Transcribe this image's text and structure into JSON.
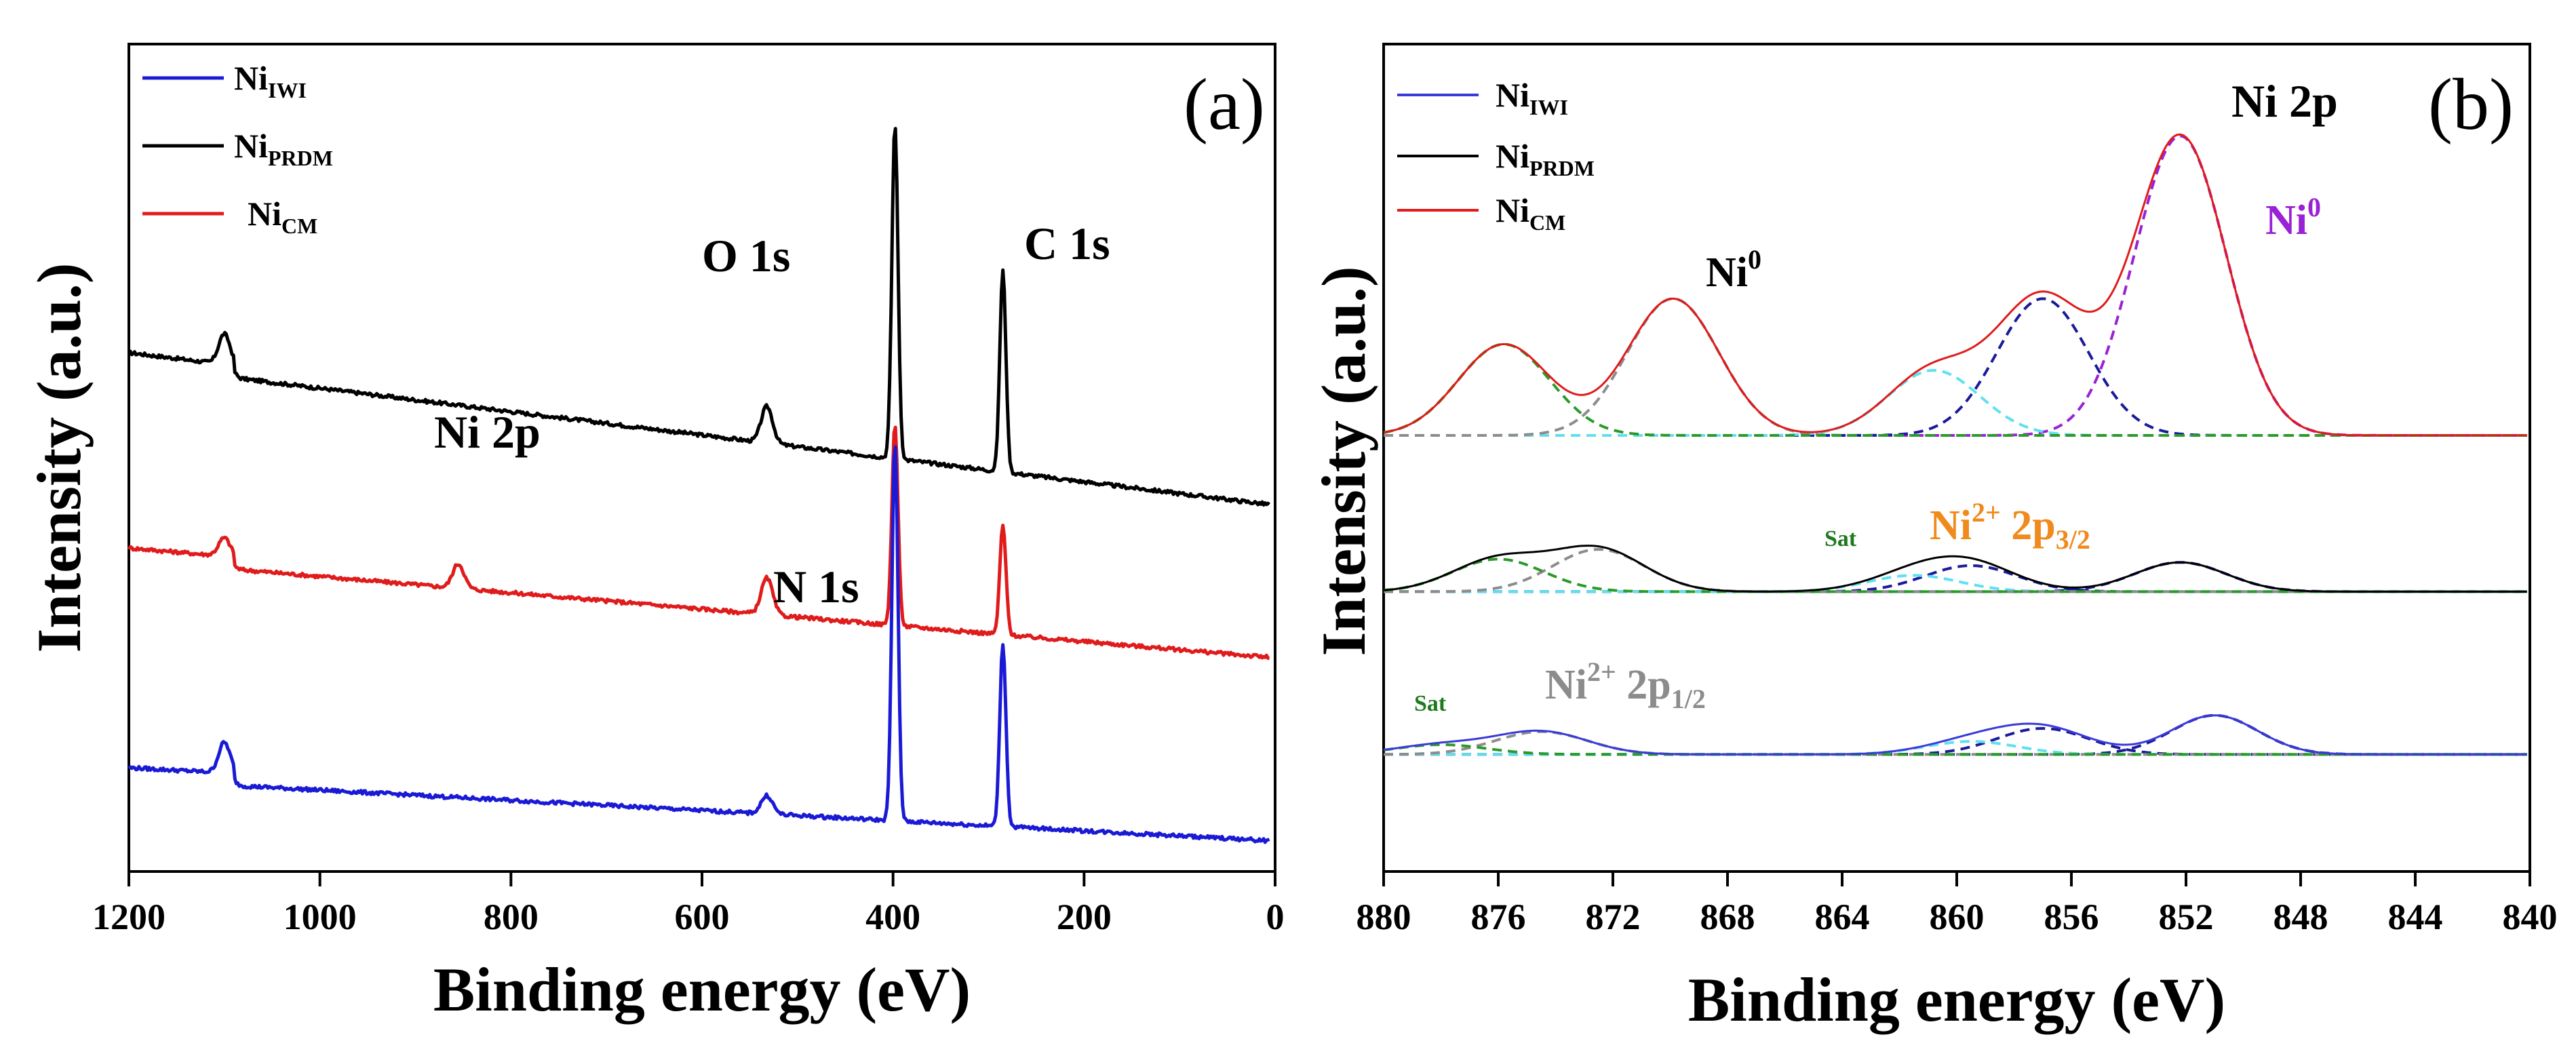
{
  "chart_data": [
    {
      "panel": "(a)",
      "type": "line",
      "xlabel": "Binding energy (eV)",
      "ylabel": "Intensity (a.u.)",
      "xlim": [
        1200,
        0
      ],
      "xticks": [
        "1200",
        "1000",
        "800",
        "600",
        "400",
        "200",
        "0"
      ],
      "xtick_values": [
        1200,
        1000,
        800,
        600,
        400,
        200,
        0
      ],
      "legend": [
        {
          "base": "Ni",
          "sub": "IWI",
          "color": "#1a1ad6"
        },
        {
          "base": "Ni",
          "sub": "PRDM",
          "color": "#000000"
        },
        {
          "base": "Ni",
          "sub": "CM",
          "color": "#e01b1b"
        }
      ],
      "annotations": [
        "O 1s",
        "C 1s",
        "Ni 2p",
        "N 1s"
      ],
      "series": [
        {
          "name": "Ni_PRDM",
          "color": "#000000",
          "baseline_left": 0.78,
          "baseline_right": 0.55,
          "peaks": [
            {
              "x": 1100,
              "h": 0.05
            },
            {
              "x": 532,
              "h": 0.06
            },
            {
              "x": 398,
              "h": 0.55
            },
            {
              "x": 285,
              "h": 0.33
            }
          ]
        },
        {
          "name": "Ni_CM",
          "color": "#e01b1b",
          "baseline_left": 0.46,
          "baseline_right": 0.3,
          "peaks": [
            {
              "x": 1100,
              "h": 0.03
            },
            {
              "x": 855,
              "h": 0.04
            },
            {
              "x": 532,
              "h": 0.06
            },
            {
              "x": 398,
              "h": 0.33
            },
            {
              "x": 285,
              "h": 0.18
            }
          ]
        },
        {
          "name": "Ni_IWI",
          "color": "#1a1ad6",
          "baseline_left": 0.1,
          "baseline_right": 0.0,
          "peaks": [
            {
              "x": 1100,
              "h": 0.05
            },
            {
              "x": 532,
              "h": 0.03
            },
            {
              "x": 398,
              "h": 0.62
            },
            {
              "x": 285,
              "h": 0.3
            }
          ]
        }
      ]
    },
    {
      "panel": "(b)",
      "type": "line",
      "xlabel": "Binding energy (eV)",
      "ylabel": "Intensity (a.u.)",
      "xlim": [
        880,
        840
      ],
      "xticks": [
        "880",
        "876",
        "872",
        "868",
        "864",
        "860",
        "856",
        "852",
        "848",
        "844",
        "840"
      ],
      "xtick_values": [
        880,
        876,
        872,
        868,
        864,
        860,
        856,
        852,
        848,
        844,
        840
      ],
      "title": "Ni 2p",
      "legend": [
        {
          "base": "Ni",
          "sub": "IWI",
          "color": "#3a3ad8"
        },
        {
          "base": "Ni",
          "sub": "PRDM",
          "color": "#000000"
        },
        {
          "base": "Ni",
          "sub": "CM",
          "color": "#e01b1b"
        }
      ],
      "annotations": [
        {
          "text": "Ni",
          "sup": "0",
          "color": "#000000"
        },
        {
          "text": "Ni",
          "sup": "0",
          "color": "#9a22d6"
        },
        {
          "text": "Sat",
          "color": "#1f7a1f"
        },
        {
          "text": "Ni",
          "sup": "2+",
          "tail": " 2p",
          "tailsub": "3/2",
          "color": "#f08a1c"
        },
        {
          "text": "Sat",
          "color": "#1f7a1f"
        },
        {
          "text": "Ni",
          "sup": "2+",
          "tail": " 2p",
          "tailsub": "1/2",
          "color": "#8c8c8c"
        }
      ],
      "series": [
        {
          "name": "Ni_CM",
          "color": "#e01b1b",
          "offset": 0.0,
          "components": [
            {
              "center": 852.2,
              "height": 0.92,
              "width": 1.6,
              "color": "#9a22d6"
            },
            {
              "center": 857.0,
              "height": 0.42,
              "width": 1.6,
              "color": "#1a1a9a"
            },
            {
              "center": 860.8,
              "height": 0.2,
              "width": 1.6,
              "color": "#5fe0f0"
            },
            {
              "center": 869.9,
              "height": 0.42,
              "width": 1.6,
              "color": "#8c8c8c"
            },
            {
              "center": 875.8,
              "height": 0.28,
              "width": 1.6,
              "color": "#2a9a2a"
            }
          ]
        },
        {
          "name": "Ni_PRDM",
          "color": "#000000",
          "offset": -0.48,
          "components": [
            {
              "center": 852.2,
              "height": 0.09,
              "width": 1.6,
              "color": "#1a1a9a"
            },
            {
              "center": 859.5,
              "height": 0.08,
              "width": 1.6,
              "color": "#1a1a9a"
            },
            {
              "center": 861.5,
              "height": 0.05,
              "width": 1.6,
              "color": "#5fe0f0"
            },
            {
              "center": 872.5,
              "height": 0.13,
              "width": 1.6,
              "color": "#8c8c8c"
            },
            {
              "center": 876.0,
              "height": 0.1,
              "width": 1.6,
              "color": "#2a9a2a"
            }
          ]
        },
        {
          "name": "Ni_IWI",
          "color": "#3a3ad8",
          "offset": -0.98,
          "components": [
            {
              "center": 851.0,
              "height": 0.12,
              "width": 1.5,
              "color": "#1a1a9a"
            },
            {
              "center": 857.0,
              "height": 0.08,
              "width": 1.6,
              "color": "#1a1a9a"
            },
            {
              "center": 859.5,
              "height": 0.04,
              "width": 1.6,
              "color": "#5fe0f0"
            },
            {
              "center": 874.5,
              "height": 0.07,
              "width": 1.6,
              "color": "#8c8c8c"
            },
            {
              "center": 878.0,
              "height": 0.03,
              "width": 1.6,
              "color": "#2a9a2a"
            }
          ]
        }
      ]
    }
  ]
}
